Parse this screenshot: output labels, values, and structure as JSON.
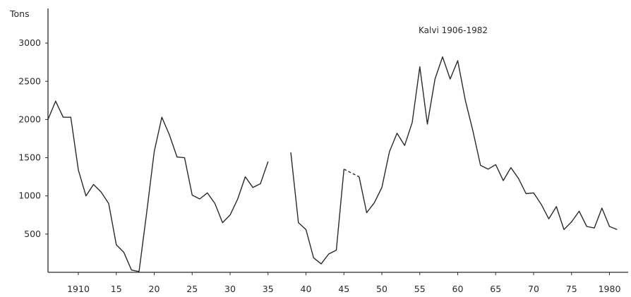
{
  "chart_data": {
    "type": "line",
    "title": "Kalvi 1906-1982",
    "ylabel": "Tons",
    "xlabel": "",
    "xlim": [
      1906,
      1982
    ],
    "ylim": [
      0,
      3000
    ],
    "y_ticks": [
      500,
      1000,
      1500,
      2000,
      2500,
      3000
    ],
    "x_ticks": [
      {
        "value": 1910,
        "label": "1910"
      },
      {
        "value": 1915,
        "label": "15"
      },
      {
        "value": 1920,
        "label": "20"
      },
      {
        "value": 1925,
        "label": "25"
      },
      {
        "value": 1930,
        "label": "30"
      },
      {
        "value": 1935,
        "label": "35"
      },
      {
        "value": 1940,
        "label": "40"
      },
      {
        "value": 1945,
        "label": "45"
      },
      {
        "value": 1950,
        "label": "50"
      },
      {
        "value": 1955,
        "label": "55"
      },
      {
        "value": 1960,
        "label": "60"
      },
      {
        "value": 1965,
        "label": "65"
      },
      {
        "value": 1970,
        "label": "70"
      },
      {
        "value": 1975,
        "label": "75"
      },
      {
        "value": 1980,
        "label": "1980"
      }
    ],
    "grid": false,
    "line_color": "#2a2a2a",
    "segments": [
      {
        "style": "solid",
        "points": [
          [
            1906,
            2000
          ],
          [
            1907,
            2240
          ],
          [
            1908,
            2030
          ],
          [
            1909,
            2030
          ],
          [
            1910,
            1340
          ],
          [
            1911,
            1000
          ],
          [
            1912,
            1150
          ],
          [
            1913,
            1050
          ],
          [
            1914,
            900
          ],
          [
            1915,
            360
          ],
          [
            1916,
            260
          ],
          [
            1917,
            30
          ],
          [
            1918,
            10
          ],
          [
            1919,
            780
          ],
          [
            1920,
            1580
          ],
          [
            1921,
            2030
          ],
          [
            1922,
            1800
          ],
          [
            1923,
            1510
          ],
          [
            1924,
            1500
          ],
          [
            1925,
            1010
          ],
          [
            1926,
            960
          ],
          [
            1927,
            1040
          ],
          [
            1928,
            900
          ],
          [
            1929,
            650
          ],
          [
            1930,
            750
          ],
          [
            1931,
            960
          ],
          [
            1932,
            1250
          ],
          [
            1933,
            1110
          ],
          [
            1934,
            1160
          ],
          [
            1935,
            1450
          ]
        ]
      },
      {
        "style": "solid",
        "points": [
          [
            1938,
            1570
          ],
          [
            1939,
            650
          ],
          [
            1940,
            560
          ],
          [
            1941,
            190
          ],
          [
            1942,
            110
          ],
          [
            1943,
            240
          ],
          [
            1944,
            290
          ],
          [
            1945,
            1350
          ]
        ]
      },
      {
        "style": "dashed",
        "points": [
          [
            1945,
            1350
          ],
          [
            1946,
            1300
          ],
          [
            1947,
            1250
          ]
        ]
      },
      {
        "style": "solid",
        "points": [
          [
            1947,
            1250
          ],
          [
            1948,
            780
          ],
          [
            1949,
            910
          ],
          [
            1950,
            1110
          ],
          [
            1951,
            1580
          ],
          [
            1952,
            1820
          ],
          [
            1953,
            1660
          ],
          [
            1954,
            1960
          ],
          [
            1955,
            2690
          ],
          [
            1956,
            1940
          ],
          [
            1957,
            2530
          ],
          [
            1958,
            2820
          ],
          [
            1959,
            2530
          ],
          [
            1960,
            2770
          ],
          [
            1961,
            2250
          ],
          [
            1962,
            1850
          ],
          [
            1963,
            1400
          ],
          [
            1964,
            1350
          ],
          [
            1965,
            1410
          ],
          [
            1966,
            1200
          ],
          [
            1967,
            1370
          ],
          [
            1968,
            1230
          ],
          [
            1969,
            1030
          ],
          [
            1970,
            1040
          ],
          [
            1971,
            890
          ],
          [
            1972,
            700
          ],
          [
            1973,
            860
          ],
          [
            1974,
            560
          ],
          [
            1975,
            660
          ],
          [
            1976,
            800
          ],
          [
            1977,
            600
          ],
          [
            1978,
            580
          ],
          [
            1979,
            840
          ],
          [
            1980,
            600
          ],
          [
            1981,
            560
          ]
        ]
      }
    ]
  }
}
